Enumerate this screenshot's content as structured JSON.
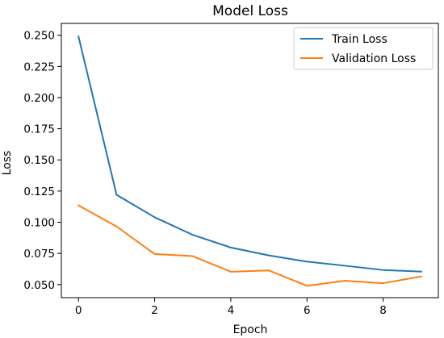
{
  "chart_data": {
    "type": "line",
    "title": "Model Loss",
    "xlabel": "Epoch",
    "ylabel": "Loss",
    "x": [
      0,
      1,
      2,
      3,
      4,
      5,
      6,
      7,
      8,
      9
    ],
    "xlim": [
      -0.45,
      9.45
    ],
    "ylim": [
      0.0395,
      0.2595
    ],
    "xticks": [
      0,
      2,
      4,
      6,
      8
    ],
    "xtick_labels": [
      "0",
      "2",
      "4",
      "6",
      "8"
    ],
    "yticks": [
      0.05,
      0.075,
      0.1,
      0.125,
      0.15,
      0.175,
      0.2,
      0.225,
      0.25
    ],
    "ytick_labels": [
      "0.050",
      "0.075",
      "0.100",
      "0.125",
      "0.150",
      "0.175",
      "0.200",
      "0.225",
      "0.250"
    ],
    "grid": false,
    "legend_position": "top-right",
    "series": [
      {
        "name": "Train Loss",
        "color": "#1f77b4",
        "values": [
          0.249,
          0.122,
          0.104,
          0.0899,
          0.0797,
          0.0734,
          0.0684,
          0.0651,
          0.0617,
          0.0604
        ]
      },
      {
        "name": "Validation Loss",
        "color": "#ff7f0e",
        "values": [
          0.1135,
          0.0966,
          0.0745,
          0.0728,
          0.0603,
          0.0613,
          0.049,
          0.0531,
          0.0511,
          0.0565
        ]
      }
    ]
  }
}
